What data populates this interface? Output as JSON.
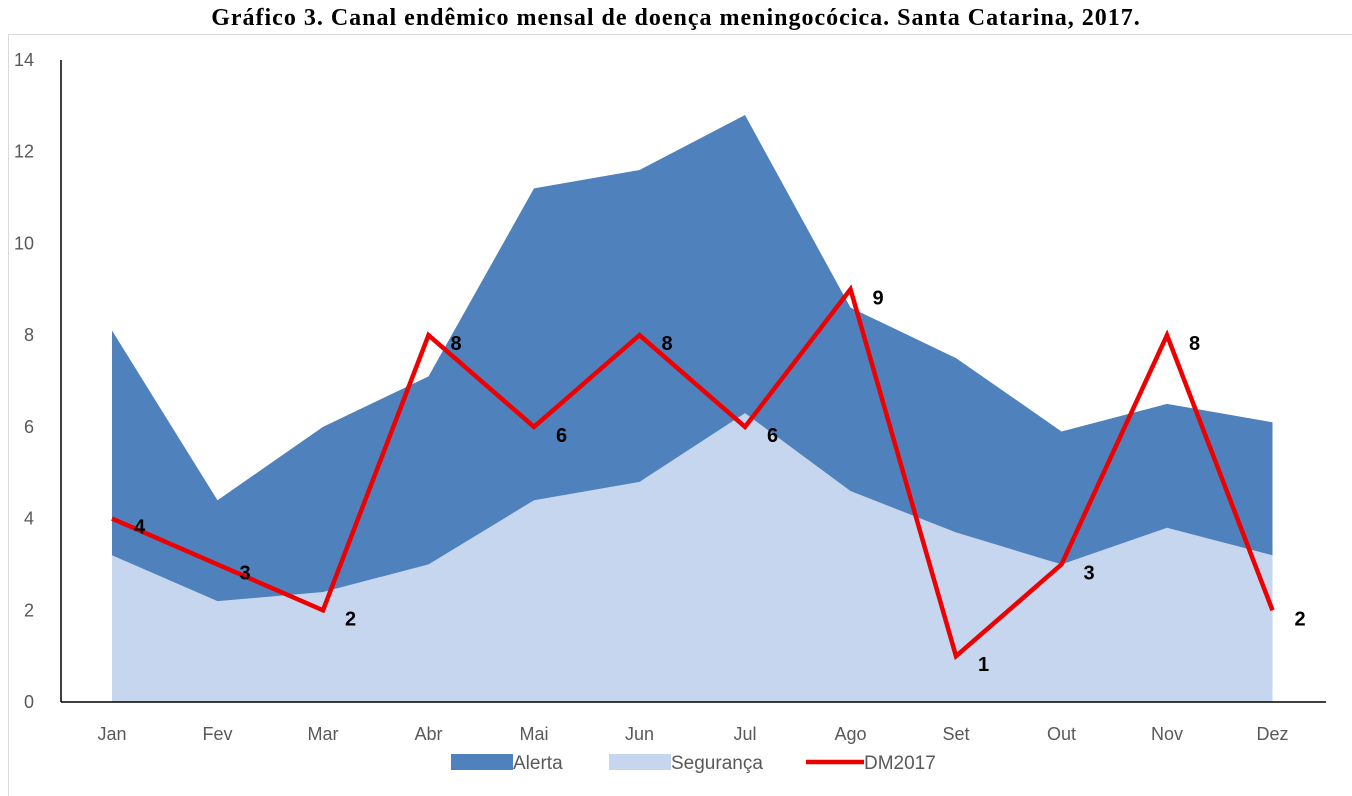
{
  "chart_data": {
    "type": "area",
    "title": "Gráfico 3. Canal endêmico mensal de doença meningocócica. Santa Catarina, 2017.",
    "categories": [
      "Jan",
      "Fev",
      "Mar",
      "Abr",
      "Mai",
      "Jun",
      "Jul",
      "Ago",
      "Set",
      "Out",
      "Nov",
      "Dez"
    ],
    "series": [
      {
        "name": "Alerta",
        "type": "area",
        "color": "#4f81bd",
        "values": [
          8.1,
          4.4,
          6.0,
          7.1,
          11.2,
          11.6,
          12.8,
          8.6,
          7.5,
          5.9,
          6.5,
          6.1
        ]
      },
      {
        "name": "Segurança",
        "type": "area",
        "color": "#c5d6ee",
        "values": [
          3.2,
          2.2,
          2.4,
          3.0,
          4.4,
          4.8,
          6.3,
          4.6,
          3.7,
          3.0,
          3.8,
          3.2
        ]
      },
      {
        "name": "DM2017",
        "type": "line",
        "color": "#ee0000",
        "values": [
          4,
          3,
          2,
          8,
          6,
          8,
          6,
          9,
          1,
          3,
          8,
          2
        ]
      }
    ],
    "ylim": [
      0,
      14
    ],
    "yticks": [
      0,
      2,
      4,
      6,
      8,
      10,
      12,
      14
    ],
    "grid": false,
    "legend": "bottom"
  }
}
